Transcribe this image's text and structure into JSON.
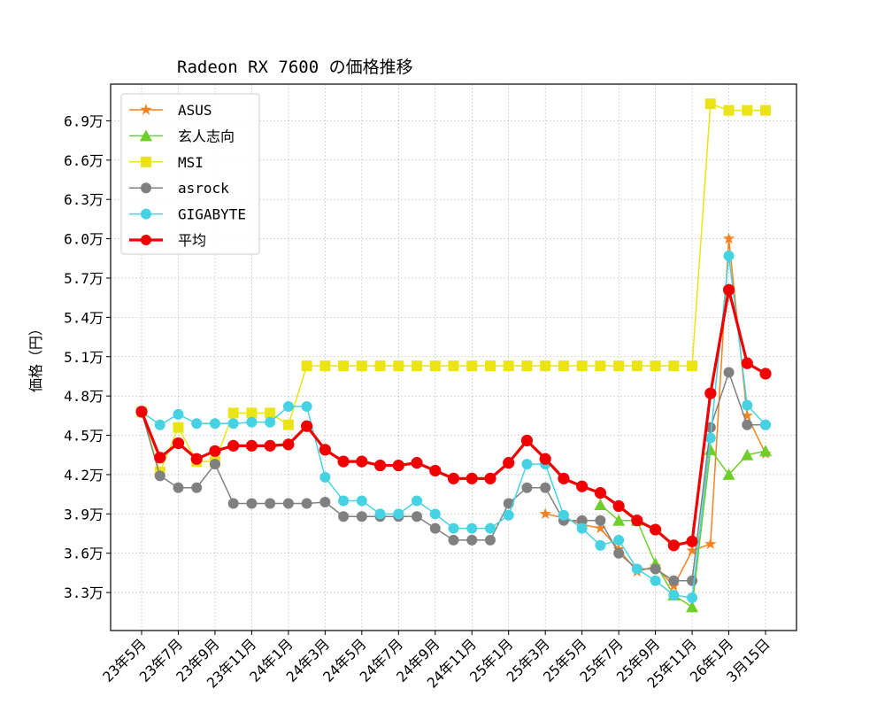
{
  "chart_data": {
    "type": "line",
    "title": "Radeon RX 7600 の価格推移",
    "xlabel": "",
    "ylabel": "価格（円）",
    "ylim": [
      30100,
      71800
    ],
    "grid": true,
    "legend_position": "top-left",
    "y_ticks": [
      33000,
      36000,
      39000,
      42000,
      45000,
      48000,
      51000,
      54000,
      57000,
      60000,
      63000,
      66000,
      69000
    ],
    "y_tick_labels": [
      "3.3万",
      "3.6万",
      "3.9万",
      "4.2万",
      "4.5万",
      "4.8万",
      "5.1万",
      "5.4万",
      "5.7万",
      "6.0万",
      "6.3万",
      "6.6万",
      "6.9万"
    ],
    "x_tick_labels": [
      "23年5月",
      "23年7月",
      "23年9月",
      "23年11月",
      "24年1月",
      "24年3月",
      "24年5月",
      "24年7月",
      "24年9月",
      "24年11月",
      "25年1月",
      "25年3月",
      "25年5月",
      "25年7月",
      "25年9月",
      "25年11月",
      "26年1月",
      "3月15日"
    ],
    "x_tick_interval": 2,
    "n_points": 35,
    "series": [
      {
        "name": "ASUS",
        "color": "#f5821f",
        "marker": "star",
        "start": 22,
        "values": [
          39000,
          38700,
          38200,
          37900,
          36300,
          34600,
          35000,
          33500,
          36200,
          36700,
          60000,
          46500,
          43600
        ]
      },
      {
        "name": "玄人志向",
        "color": "#6fcf2a",
        "marker": "triangle",
        "start": 25,
        "values": [
          39700,
          38500,
          38500,
          35200,
          32800,
          31900,
          43900,
          42000,
          43500,
          43800
        ]
      },
      {
        "name": "MSI",
        "color": "#ebe415",
        "marker": "square",
        "start": 0,
        "values": [
          46800,
          42200,
          45600,
          43000,
          43000,
          46700,
          46700,
          46700,
          45800,
          50300,
          50300,
          50300,
          50300,
          50300,
          50300,
          50300,
          50300,
          50300,
          50300,
          50300,
          50300,
          50300,
          50300,
          50300,
          50300,
          50300,
          50300,
          50300,
          50300,
          50300,
          50300,
          70300,
          69800,
          69800,
          69800
        ]
      },
      {
        "name": "asrock",
        "color": "#808080",
        "marker": "circle",
        "start": 0,
        "values": [
          46800,
          41900,
          41000,
          41000,
          42800,
          39800,
          39800,
          39800,
          39800,
          39800,
          39900,
          38800,
          38800,
          38800,
          38800,
          38800,
          37900,
          37000,
          37000,
          37000,
          39800,
          41000,
          41000,
          38500,
          38500,
          38500,
          36000,
          34800,
          34800,
          33900,
          33900,
          45600,
          49800,
          45800,
          45800
        ]
      },
      {
        "name": "GIGABYTE",
        "color": "#45d3e3",
        "marker": "circle",
        "start": 0,
        "values": [
          46800,
          45800,
          46600,
          45900,
          45900,
          45900,
          46000,
          46000,
          47200,
          47200,
          41800,
          40000,
          40000,
          39000,
          39000,
          40000,
          39000,
          37900,
          37900,
          37900,
          38900,
          42800,
          42800,
          38900,
          37900,
          36600,
          37000,
          34800,
          33900,
          32800,
          32600,
          44800,
          58700,
          47300,
          45800
        ]
      },
      {
        "name": "平均",
        "color": "#f00000",
        "marker": "circle",
        "start": 0,
        "bold": true,
        "values": [
          46800,
          43300,
          44400,
          43200,
          43800,
          44200,
          44200,
          44200,
          44300,
          45700,
          43900,
          43000,
          43000,
          42700,
          42700,
          42900,
          42300,
          41700,
          41700,
          41700,
          42900,
          44600,
          43200,
          41700,
          41100,
          40600,
          39600,
          38500,
          37800,
          36600,
          36900,
          48200,
          56100,
          50500,
          49700
        ]
      }
    ]
  }
}
